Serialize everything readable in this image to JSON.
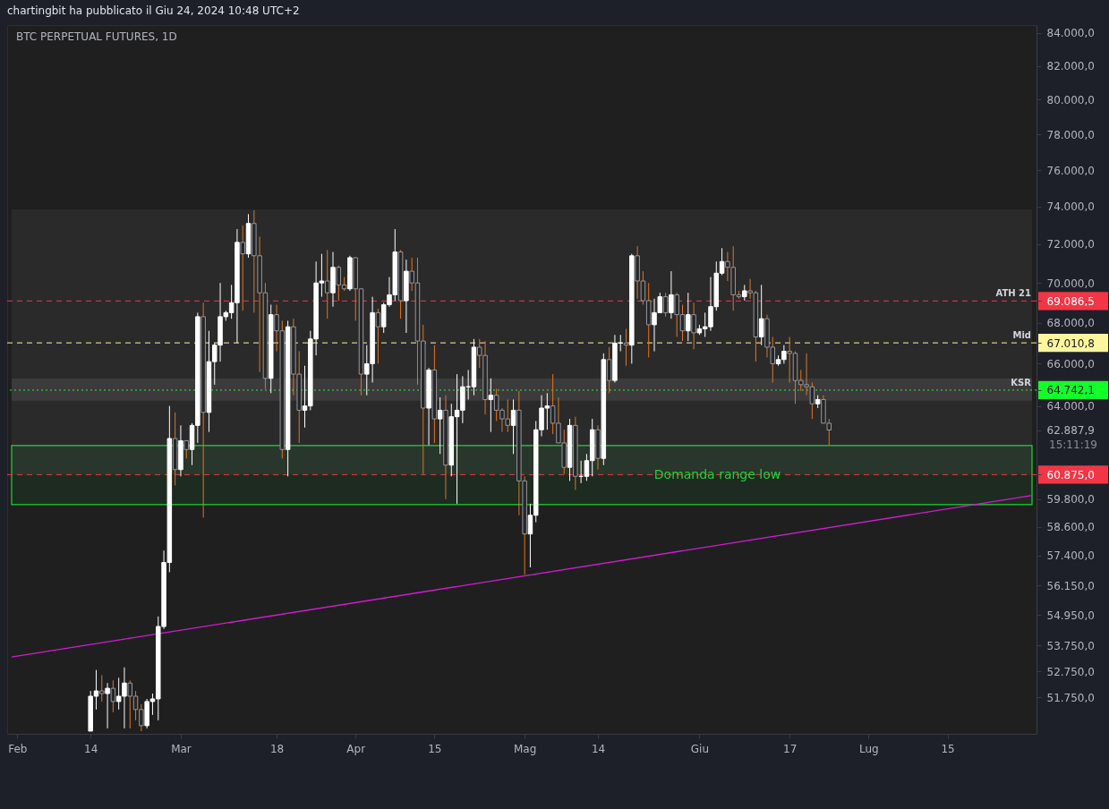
{
  "chart_data": {
    "type": "candlestick",
    "title": "BTC PERPETUAL FUTURES, 1D",
    "subtitle": "chartingbit ha pubblicato il Giu 24, 2024 10:48 UTC+2",
    "log": true,
    "xlim": [
      "2024-01-31",
      "2024-07-30"
    ],
    "xticks": [
      {
        "value": "2024-02-01",
        "label": "Feb"
      },
      {
        "value": "2024-02-14",
        "label": "14"
      },
      {
        "value": "2024-03-01",
        "label": "Mar"
      },
      {
        "value": "2024-03-18",
        "label": "18"
      },
      {
        "value": "2024-04-01",
        "label": "Apr"
      },
      {
        "value": "2024-04-15",
        "label": "15"
      },
      {
        "value": "2024-05-01",
        "label": "Mag"
      },
      {
        "value": "2024-05-14",
        "label": "14"
      },
      {
        "value": "2024-06-01",
        "label": "Giu"
      },
      {
        "value": "2024-06-17",
        "label": "17"
      },
      {
        "value": "2024-07-01",
        "label": "Lug"
      },
      {
        "value": "2024-07-15",
        "label": "15"
      }
    ],
    "ylim": [
      50400,
      84470
    ],
    "yticks": [
      {
        "value": 51750,
        "label": "51.750,0"
      },
      {
        "value": 52750,
        "label": "52.750,0"
      },
      {
        "value": 53750,
        "label": "53.750,0"
      },
      {
        "value": 54950,
        "label": "54.950,0"
      },
      {
        "value": 56150,
        "label": "56.150,0"
      },
      {
        "value": 57400,
        "label": "57.400,0"
      },
      {
        "value": 58600,
        "label": "58.600,0"
      },
      {
        "value": 59800,
        "label": "59.800,0"
      },
      {
        "value": 60875,
        "label": "60.875,0"
      },
      {
        "value": 62887.9,
        "label": "62.887,9"
      },
      {
        "value": 64742.1,
        "label": "64.742,1"
      },
      {
        "value": 67010.8,
        "label": "67.010,8"
      },
      {
        "value": 69086.5,
        "label": "69.086,5"
      },
      {
        "value": 64000,
        "label": "64.000,0"
      },
      {
        "value": 66000,
        "label": "66.000,0"
      },
      {
        "value": 68000,
        "label": "68.000,0"
      },
      {
        "value": 70000,
        "label": "70.000,0"
      },
      {
        "value": 72000,
        "label": "72.000,0"
      },
      {
        "value": 74000,
        "label": "74.000,0"
      },
      {
        "value": 76000,
        "label": "76.000,0"
      },
      {
        "value": 78000,
        "label": "78.000,0"
      },
      {
        "value": 80000,
        "label": "80.000,0"
      },
      {
        "value": 82000,
        "label": "82.000,0"
      },
      {
        "value": 84000,
        "label": "84.000,0"
      }
    ],
    "x": [
      "2024-02-14",
      "2024-02-15",
      "2024-02-16",
      "2024-02-17",
      "2024-02-18",
      "2024-02-19",
      "2024-02-20",
      "2024-02-21",
      "2024-02-22",
      "2024-02-23",
      "2024-02-24",
      "2024-02-25",
      "2024-02-26",
      "2024-02-27",
      "2024-02-28",
      "2024-02-29",
      "2024-03-01",
      "2024-03-02",
      "2024-03-03",
      "2024-03-04",
      "2024-03-05",
      "2024-03-06",
      "2024-03-07",
      "2024-03-08",
      "2024-03-09",
      "2024-03-10",
      "2024-03-11",
      "2024-03-12",
      "2024-03-13",
      "2024-03-14",
      "2024-03-15",
      "2024-03-16",
      "2024-03-17",
      "2024-03-18",
      "2024-03-19",
      "2024-03-20",
      "2024-03-21",
      "2024-03-22",
      "2024-03-23",
      "2024-03-24",
      "2024-03-25",
      "2024-03-26",
      "2024-03-27",
      "2024-03-28",
      "2024-03-29",
      "2024-03-30",
      "2024-03-31",
      "2024-04-01",
      "2024-04-02",
      "2024-04-03",
      "2024-04-04",
      "2024-04-05",
      "2024-04-06",
      "2024-04-07",
      "2024-04-08",
      "2024-04-09",
      "2024-04-10",
      "2024-04-11",
      "2024-04-12",
      "2024-04-13",
      "2024-04-14",
      "2024-04-15",
      "2024-04-16",
      "2024-04-17",
      "2024-04-18",
      "2024-04-19",
      "2024-04-20",
      "2024-04-21",
      "2024-04-22",
      "2024-04-23",
      "2024-04-24",
      "2024-04-25",
      "2024-04-26",
      "2024-04-27",
      "2024-04-28",
      "2024-04-29",
      "2024-04-30",
      "2024-05-01",
      "2024-05-02",
      "2024-05-03",
      "2024-05-04",
      "2024-05-05",
      "2024-05-06",
      "2024-05-07",
      "2024-05-08",
      "2024-05-09",
      "2024-05-10",
      "2024-05-11",
      "2024-05-12",
      "2024-05-13",
      "2024-05-14",
      "2024-05-15",
      "2024-05-16",
      "2024-05-17",
      "2024-05-18",
      "2024-05-19",
      "2024-05-20",
      "2024-05-21",
      "2024-05-22",
      "2024-05-23",
      "2024-05-24",
      "2024-05-25",
      "2024-05-26",
      "2024-05-27",
      "2024-05-28",
      "2024-05-29",
      "2024-05-30",
      "2024-05-31",
      "2024-06-01",
      "2024-06-02",
      "2024-06-03",
      "2024-06-04",
      "2024-06-05",
      "2024-06-06",
      "2024-06-07",
      "2024-06-08",
      "2024-06-09",
      "2024-06-10",
      "2024-06-11",
      "2024-06-12",
      "2024-06-13",
      "2024-06-14",
      "2024-06-15",
      "2024-06-16",
      "2024-06-17",
      "2024-06-18",
      "2024-06-19",
      "2024-06-20",
      "2024-06-21",
      "2024-06-22",
      "2024-06-23",
      "2024-06-24"
    ],
    "ohlc": [
      [
        50500,
        52000,
        50500,
        51800
      ],
      [
        51800,
        52800,
        51300,
        52000
      ],
      [
        52000,
        52600,
        51600,
        51900
      ],
      [
        51900,
        52300,
        50600,
        52100
      ],
      [
        52100,
        52400,
        51200,
        51600
      ],
      [
        51600,
        52500,
        51300,
        51800
      ],
      [
        51800,
        52900,
        50600,
        52300
      ],
      [
        52300,
        52400,
        50600,
        51800
      ],
      [
        51800,
        52000,
        50900,
        51300
      ],
      [
        51300,
        51500,
        50500,
        50700
      ],
      [
        50700,
        51700,
        50600,
        51600
      ],
      [
        51600,
        51900,
        51100,
        51700
      ],
      [
        51700,
        54900,
        50900,
        54500
      ],
      [
        54500,
        57600,
        54400,
        57100
      ],
      [
        57100,
        64000,
        56700,
        62500
      ],
      [
        62500,
        63700,
        60400,
        61100
      ],
      [
        61100,
        63100,
        60800,
        62400
      ],
      [
        62400,
        62400,
        61600,
        62000
      ],
      [
        62000,
        63200,
        61300,
        63100
      ],
      [
        63100,
        68500,
        62300,
        68300
      ],
      [
        68300,
        69000,
        59000,
        63700
      ],
      [
        63700,
        67600,
        62800,
        66100
      ],
      [
        66100,
        67000,
        65000,
        66900
      ],
      [
        66900,
        70000,
        66100,
        68300
      ],
      [
        68300,
        68600,
        68100,
        68500
      ],
      [
        68500,
        69900,
        68200,
        69000
      ],
      [
        69000,
        72800,
        67000,
        72100
      ],
      [
        72100,
        73000,
        68600,
        71500
      ],
      [
        71500,
        73600,
        71300,
        73100
      ],
      [
        73100,
        73800,
        68500,
        71400
      ],
      [
        71400,
        72400,
        65600,
        69500
      ],
      [
        69500,
        70000,
        64800,
        65300
      ],
      [
        65300,
        68900,
        64600,
        68400
      ],
      [
        68400,
        68900,
        66600,
        67600
      ],
      [
        67600,
        68100,
        61600,
        62000
      ],
      [
        62000,
        68100,
        60800,
        67800
      ],
      [
        67800,
        68200,
        64500,
        65500
      ],
      [
        65500,
        66600,
        62300,
        63800
      ],
      [
        63800,
        65900,
        63000,
        64000
      ],
      [
        64000,
        67600,
        63800,
        67200
      ],
      [
        67200,
        71100,
        66400,
        70000
      ],
      [
        70000,
        71500,
        69300,
        70100
      ],
      [
        70100,
        71700,
        68200,
        69500
      ],
      [
        69500,
        71600,
        68800,
        70800
      ],
      [
        70800,
        70900,
        69100,
        69900
      ],
      [
        69900,
        70300,
        69600,
        69700
      ],
      [
        69700,
        71400,
        69600,
        71300
      ],
      [
        71300,
        71300,
        68100,
        69700
      ],
      [
        69700,
        69700,
        64500,
        65500
      ],
      [
        65500,
        66900,
        64500,
        66000
      ],
      [
        66000,
        69300,
        65100,
        68500
      ],
      [
        68500,
        68700,
        66000,
        67800
      ],
      [
        67800,
        69000,
        67500,
        68900
      ],
      [
        68900,
        70300,
        68800,
        69400
      ],
      [
        69400,
        72800,
        69100,
        71600
      ],
      [
        71600,
        71700,
        68200,
        69100
      ],
      [
        69100,
        71200,
        67500,
        70600
      ],
      [
        70600,
        71300,
        69600,
        70000
      ],
      [
        70000,
        71300,
        65000,
        67100
      ],
      [
        67100,
        67900,
        60900,
        63900
      ],
      [
        63900,
        65800,
        62200,
        65700
      ],
      [
        65700,
        66900,
        62300,
        63400
      ],
      [
        63400,
        64400,
        61800,
        63800
      ],
      [
        63800,
        64500,
        59800,
        61300
      ],
      [
        61300,
        64100,
        60800,
        63500
      ],
      [
        63500,
        65500,
        59600,
        63800
      ],
      [
        63800,
        65400,
        63200,
        64900
      ],
      [
        64900,
        65700,
        64300,
        64900
      ],
      [
        64900,
        67200,
        64500,
        66800
      ],
      [
        66800,
        67200,
        65800,
        66400
      ],
      [
        66400,
        67100,
        63600,
        64300
      ],
      [
        64300,
        65300,
        62800,
        64500
      ],
      [
        64500,
        64800,
        63300,
        63800
      ],
      [
        63800,
        63900,
        62800,
        63400
      ],
      [
        63400,
        64300,
        62800,
        63100
      ],
      [
        63100,
        64300,
        61800,
        63800
      ],
      [
        63800,
        64700,
        59100,
        60600
      ],
      [
        60600,
        60800,
        56600,
        58300
      ],
      [
        58300,
        59600,
        56900,
        59100
      ],
      [
        59100,
        63300,
        58800,
        62900
      ],
      [
        62900,
        64500,
        62600,
        63900
      ],
      [
        63900,
        64600,
        62900,
        64000
      ],
      [
        64000,
        65500,
        62700,
        63200
      ],
      [
        63200,
        64400,
        62300,
        62300
      ],
      [
        62300,
        62900,
        60900,
        61200
      ],
      [
        61200,
        63400,
        60600,
        63100
      ],
      [
        63100,
        63500,
        60200,
        60800
      ],
      [
        60800,
        61500,
        60500,
        60800
      ],
      [
        60800,
        61800,
        60600,
        61500
      ],
      [
        61500,
        63400,
        60800,
        62900
      ],
      [
        62900,
        63100,
        61100,
        61600
      ],
      [
        61600,
        66500,
        61300,
        66200
      ],
      [
        66200,
        66800,
        64600,
        65200
      ],
      [
        65200,
        67400,
        65100,
        67000
      ],
      [
        67000,
        67400,
        66600,
        67000
      ],
      [
        67000,
        67700,
        65900,
        66900
      ],
      [
        66900,
        71500,
        66000,
        71400
      ],
      [
        71400,
        71900,
        69200,
        70100
      ],
      [
        70100,
        70600,
        68900,
        69100
      ],
      [
        69100,
        70000,
        66300,
        67900
      ],
      [
        67900,
        69200,
        66600,
        68500
      ],
      [
        68500,
        69500,
        68500,
        69300
      ],
      [
        69300,
        69500,
        68300,
        68500
      ],
      [
        68500,
        70600,
        68200,
        69400
      ],
      [
        69400,
        69500,
        67300,
        68400
      ],
      [
        68400,
        68900,
        67100,
        67600
      ],
      [
        67600,
        69500,
        67100,
        68400
      ],
      [
        68400,
        69000,
        66700,
        67500
      ],
      [
        67500,
        67900,
        67400,
        67700
      ],
      [
        67700,
        68500,
        67300,
        67800
      ],
      [
        67800,
        70300,
        67600,
        68800
      ],
      [
        68800,
        71100,
        68600,
        70500
      ],
      [
        70500,
        71800,
        70400,
        71100
      ],
      [
        71100,
        71600,
        70100,
        70800
      ],
      [
        70800,
        71900,
        68600,
        69400
      ],
      [
        69400,
        69600,
        69200,
        69300
      ],
      [
        69300,
        69900,
        69100,
        69600
      ],
      [
        69600,
        70200,
        69200,
        69500
      ],
      [
        69500,
        69600,
        66100,
        67300
      ],
      [
        67300,
        69900,
        66900,
        68200
      ],
      [
        68200,
        68400,
        66300,
        66800
      ],
      [
        66800,
        67300,
        65100,
        66000
      ],
      [
        66000,
        66400,
        65900,
        66200
      ],
      [
        66200,
        66900,
        66000,
        66600
      ],
      [
        66600,
        67300,
        65100,
        66500
      ],
      [
        66500,
        66600,
        64100,
        65200
      ],
      [
        65200,
        65700,
        64700,
        65000
      ],
      [
        65000,
        66500,
        64500,
        64900
      ],
      [
        64900,
        65100,
        63400,
        64100
      ],
      [
        64100,
        64500,
        63900,
        64300
      ],
      [
        64300,
        64500,
        63200,
        63200
      ],
      [
        63200,
        63400,
        62200,
        62887.9
      ]
    ],
    "series": [
      {
        "type": "line",
        "x": [
          "2024-01-31",
          "2024-07-30"
        ],
        "values": [
          53300,
          59960
        ],
        "color": "#d21cd2"
      }
    ],
    "bands": [
      {
        "axis": "y",
        "from": 60875,
        "to": 73850,
        "color": "#2a2a2a"
      },
      {
        "axis": "y",
        "from": 64250,
        "to": 65300,
        "color": "#3b3b3b"
      },
      {
        "axis": "y",
        "from": 59560,
        "to": 62180,
        "label": "Domanda range low",
        "color": "#1fd33a"
      }
    ],
    "ref_lines": [
      {
        "axis": "y",
        "value": 69086.5,
        "label": "ATH 21",
        "color": "#f23645",
        "line_style": "dashed"
      },
      {
        "axis": "y",
        "value": 67010.8,
        "label": "Mid",
        "color": "#fff59d",
        "line_style": "dashed"
      },
      {
        "axis": "y",
        "value": 64742.1,
        "label": "KSR",
        "color": "#12ff2a",
        "line_style": "dotted"
      },
      {
        "axis": "y",
        "value": 60875,
        "color": "#f23645",
        "line_style": "dashed"
      }
    ],
    "annotations": [
      "15:11:19"
    ]
  }
}
